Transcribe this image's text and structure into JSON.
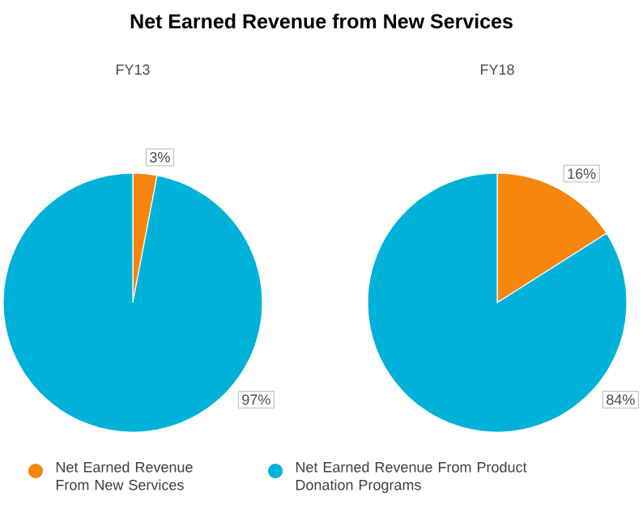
{
  "chart_data": [
    {
      "type": "pie",
      "title": "Net Earned Revenue from New Services",
      "subtitle": "FY13",
      "categories": [
        "Net Earned Revenue From New Services",
        "Net Earned Revenue From Product Donation Programs"
      ],
      "values": [
        3,
        97
      ],
      "colors": [
        "#f7860f",
        "#00b2d9"
      ],
      "value_labels": [
        "3%",
        "97%"
      ],
      "legend": "bottom"
    },
    {
      "type": "pie",
      "subtitle": "FY18",
      "categories": [
        null,
        null
      ],
      "values": [
        16,
        84
      ],
      "colors": [
        "#f7860f",
        "#00b2d9"
      ],
      "value_labels": [
        "16%",
        "84%"
      ]
    }
  ]
}
